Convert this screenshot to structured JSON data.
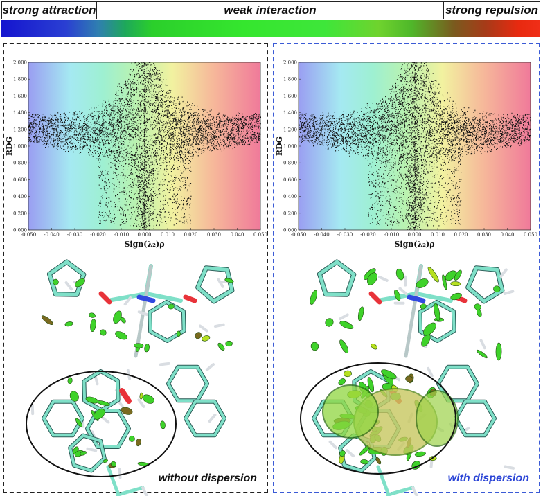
{
  "legend": {
    "left_label": "strong attraction",
    "middle_label": "weak interaction",
    "right_label": "strong repulsion"
  },
  "panels": [
    {
      "id": "left",
      "caption": "without dispersion",
      "caption_color": "#111111",
      "border_color": "#222222",
      "plot": {
        "ylabel": "RDG",
        "xlabel": "Sign(λ₂)ρ",
        "x_ticks": [
          "-0.050",
          "-0.040",
          "-0.030",
          "-0.020",
          "-0.010",
          "0.000",
          "0.010",
          "0.020",
          "0.030",
          "0.040",
          "0.050"
        ],
        "y_ticks": [
          "2.000",
          "1.800",
          "1.600",
          "1.400",
          "1.200",
          "1.000",
          "0.800",
          "0.600",
          "0.400",
          "0.200",
          "0.000"
        ]
      }
    },
    {
      "id": "right",
      "caption": "with dispersion",
      "caption_color": "#2a44d6",
      "border_color": "#3b5bd6",
      "plot": {
        "ylabel": "RDG",
        "xlabel": "Sign(λ₂)ρ",
        "x_ticks": [
          "-0.050",
          "-0.040",
          "-0.030",
          "-0.020",
          "-0.010",
          "0.000",
          "0.010",
          "0.020",
          "0.030",
          "0.040",
          "0.050"
        ],
        "y_ticks": [
          "2.000",
          "1.800",
          "1.600",
          "1.400",
          "1.200",
          "1.000",
          "0.800",
          "0.600",
          "0.400",
          "0.200",
          "0.000"
        ]
      }
    }
  ]
}
